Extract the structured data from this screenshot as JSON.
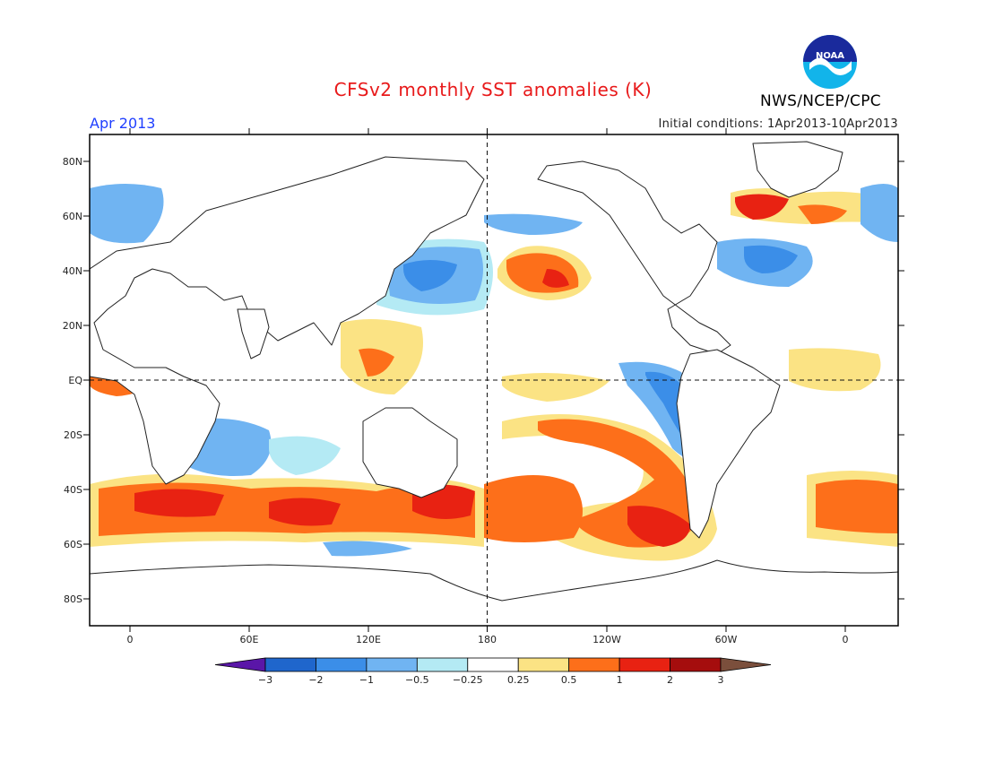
{
  "header": {
    "title": "CFSv2 monthly SST anomalies (K)",
    "organization": "NWS/NCEP/CPC",
    "logo_text": "NOAA",
    "month": "Apr 2013",
    "initial_conditions": "Initial conditions: 1Apr2013-10Apr2013"
  },
  "map": {
    "projection": "equirectangular",
    "lon_labels": [
      "0",
      "60E",
      "120E",
      "180",
      "120W",
      "60W",
      "0"
    ],
    "lat_labels": [
      "80N",
      "60N",
      "40N",
      "20N",
      "EQ",
      "20S",
      "40S",
      "60S",
      "80S"
    ],
    "reference_lines": [
      "EQ",
      "180"
    ]
  },
  "colorbar": {
    "tick_labels": [
      "-3",
      "-2",
      "-1",
      "-0.5",
      "-0.25",
      "0.25",
      "0.5",
      "1",
      "2",
      "3"
    ],
    "colors": [
      "#5a16a8",
      "#1f66cc",
      "#3b8ee8",
      "#70b4f2",
      "#b4eaf4",
      "#ffffff",
      "#fbe384",
      "#fd6f1a",
      "#e82212",
      "#a50d0d",
      "#7b4f3c"
    ]
  }
}
